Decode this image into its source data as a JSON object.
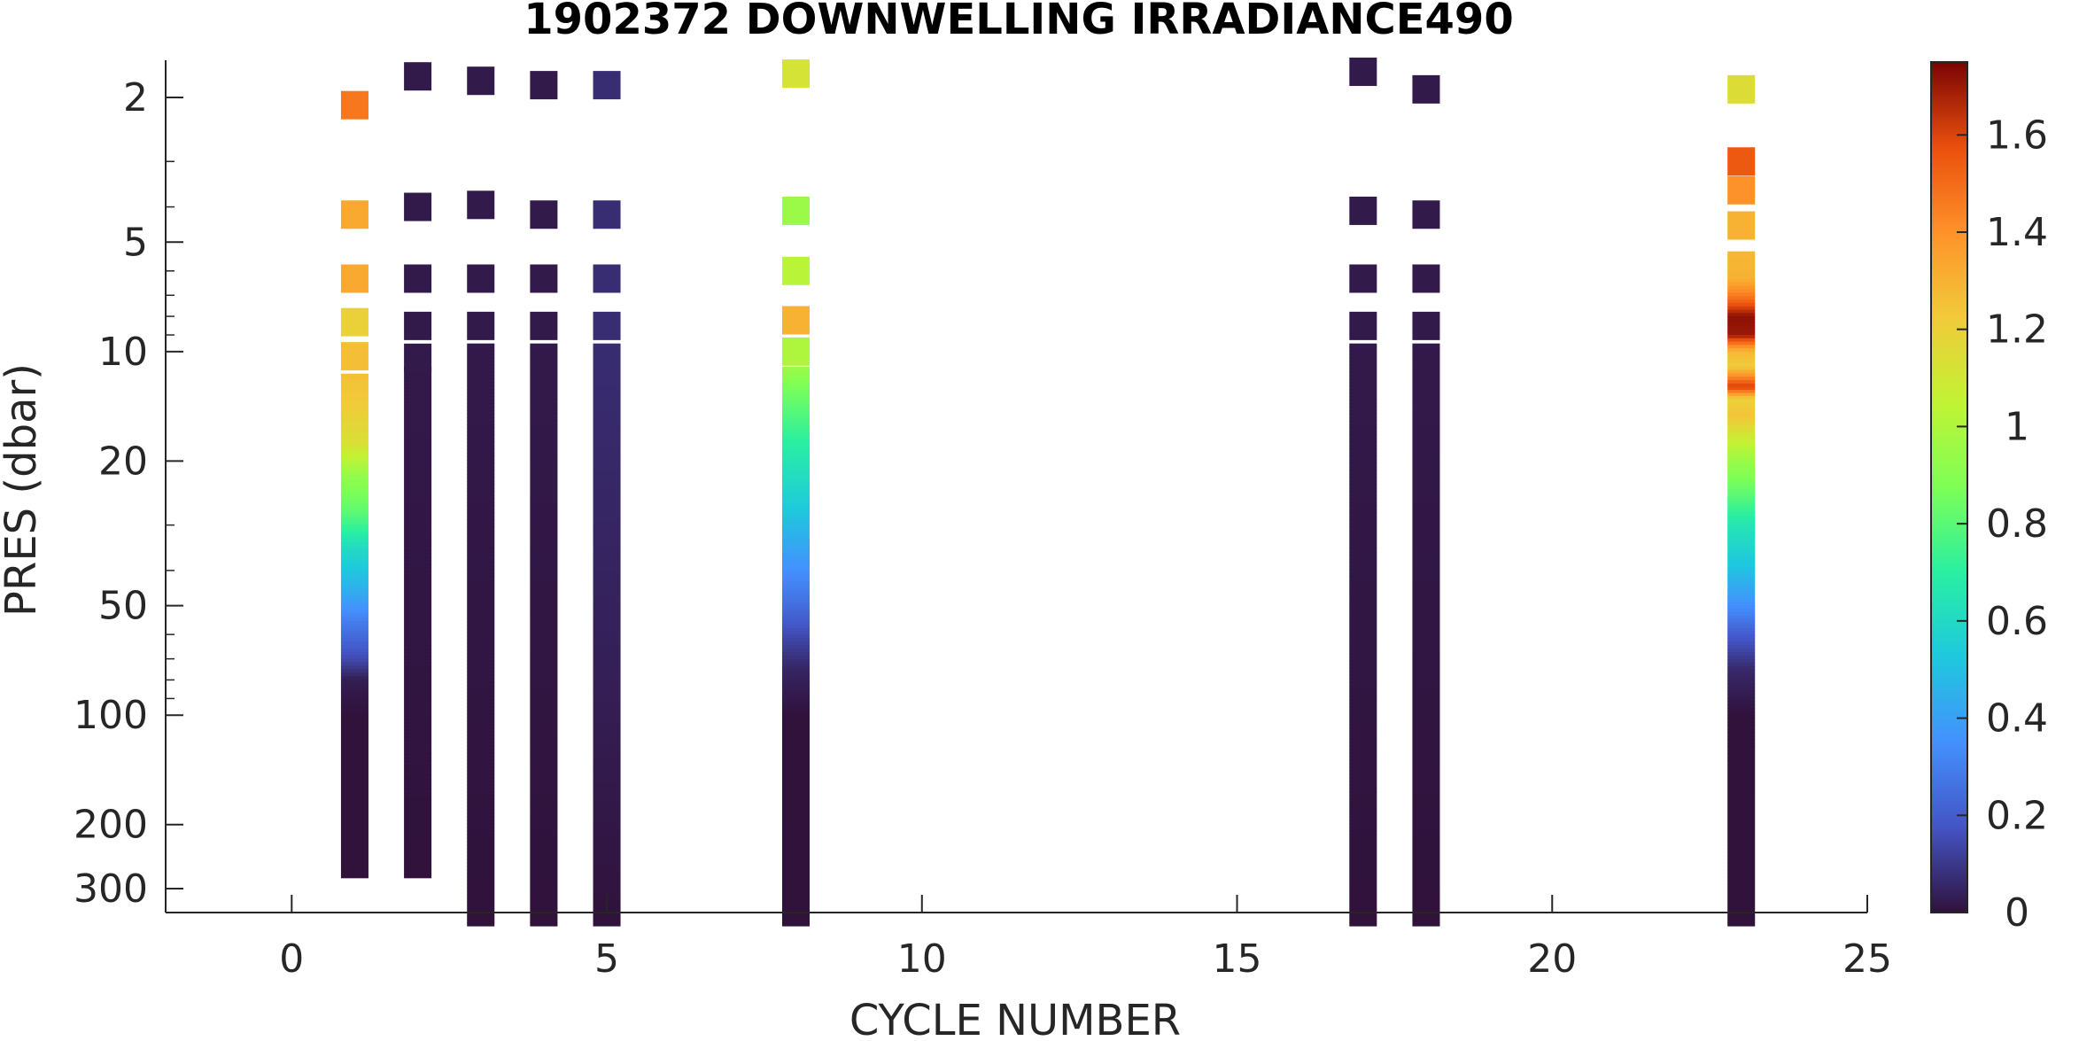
{
  "chart_data": {
    "type": "heatmap",
    "title": "1902372  DOWNWELLING IRRADIANCE490",
    "xlabel": "CYCLE NUMBER",
    "ylabel": "PRES (dbar)",
    "x_ticks": [
      "0",
      "5",
      "10",
      "15",
      "20",
      "25"
    ],
    "x_tick_values": [
      0,
      5,
      10,
      15,
      20,
      25
    ],
    "xlim": [
      -2,
      25
    ],
    "y_scale": "log",
    "y_reversed": true,
    "y_ticks": [
      "2",
      "5",
      "10",
      "20",
      "50",
      "100",
      "200",
      "300"
    ],
    "y_tick_values": [
      2,
      5,
      10,
      20,
      50,
      100,
      200,
      300
    ],
    "ylim": [
      1.5,
      380
    ],
    "colorbar": {
      "colormap": "turbo",
      "range": [
        0,
        1.75
      ],
      "ticks": [
        "0",
        "0.2",
        "0.4",
        "0.6",
        "0.8",
        "1",
        "1.2",
        "1.4",
        "1.6"
      ],
      "tick_values": [
        0,
        0.2,
        0.4,
        0.6,
        0.8,
        1.0,
        1.2,
        1.4,
        1.6
      ]
    },
    "profiles": [
      {
        "cycle": 1,
        "discrete": [
          [
            2.1,
            1.47
          ],
          [
            4.2,
            1.33
          ],
          [
            6.3,
            1.33
          ],
          [
            8.3,
            1.2
          ],
          [
            10.3,
            1.26
          ]
        ],
        "continuous": [
          [
            11.5,
            1.26
          ],
          [
            14,
            1.22
          ],
          [
            18,
            1.13
          ],
          [
            22,
            0.93
          ],
          [
            28,
            0.8
          ],
          [
            35,
            0.6
          ],
          [
            45,
            0.45
          ],
          [
            55,
            0.3
          ],
          [
            70,
            0.15
          ],
          [
            80,
            0.03
          ],
          [
            100,
            0.0
          ],
          [
            280,
            0.0
          ]
        ]
      },
      {
        "cycle": 2,
        "discrete": [
          [
            1.75,
            0.02
          ],
          [
            4.0,
            0.02
          ],
          [
            6.3,
            0.02
          ],
          [
            8.5,
            0.02
          ],
          [
            10.4,
            0.02
          ]
        ],
        "continuous": [
          [
            11,
            0.02
          ],
          [
            280,
            0.0
          ]
        ]
      },
      {
        "cycle": 3,
        "discrete": [
          [
            1.8,
            0.02
          ],
          [
            3.95,
            0.02
          ],
          [
            6.3,
            0.02
          ],
          [
            8.5,
            0.02
          ]
        ],
        "continuous": [
          [
            9.5,
            0.02
          ],
          [
            400,
            0.0
          ]
        ]
      },
      {
        "cycle": 4,
        "discrete": [
          [
            1.85,
            0.02
          ],
          [
            4.2,
            0.02
          ],
          [
            6.3,
            0.02
          ],
          [
            8.5,
            0.02
          ]
        ],
        "continuous": [
          [
            9.5,
            0.02
          ],
          [
            400,
            0.0
          ]
        ]
      },
      {
        "cycle": 5,
        "discrete": [
          [
            1.85,
            0.07
          ],
          [
            4.2,
            0.07
          ],
          [
            6.3,
            0.07
          ],
          [
            8.5,
            0.07
          ]
        ],
        "continuous": [
          [
            9.5,
            0.07
          ],
          [
            60,
            0.04
          ],
          [
            400,
            0.0
          ]
        ]
      },
      {
        "cycle": 8,
        "discrete": [
          [
            1.72,
            1.12
          ],
          [
            4.1,
            0.95
          ],
          [
            6.0,
            1.03
          ],
          [
            8.2,
            1.3
          ],
          [
            10.0,
            1.0
          ]
        ],
        "continuous": [
          [
            11,
            0.95
          ],
          [
            13,
            0.85
          ],
          [
            16,
            0.75
          ],
          [
            20,
            0.65
          ],
          [
            26,
            0.55
          ],
          [
            32,
            0.45
          ],
          [
            40,
            0.35
          ],
          [
            50,
            0.25
          ],
          [
            60,
            0.15
          ],
          [
            75,
            0.05
          ],
          [
            100,
            0.0
          ],
          [
            400,
            0.0
          ]
        ]
      },
      {
        "cycle": 17,
        "discrete": [
          [
            1.7,
            0.02
          ],
          [
            4.1,
            0.02
          ],
          [
            6.3,
            0.02
          ],
          [
            8.5,
            0.02
          ]
        ],
        "continuous": [
          [
            9.5,
            0.02
          ],
          [
            400,
            0.0
          ]
        ]
      },
      {
        "cycle": 18,
        "discrete": [
          [
            1.9,
            0.02
          ],
          [
            4.2,
            0.02
          ],
          [
            6.3,
            0.02
          ],
          [
            8.5,
            0.02
          ]
        ],
        "continuous": [
          [
            9.5,
            0.02
          ],
          [
            400,
            0.0
          ]
        ]
      },
      {
        "cycle": 23,
        "discrete": [
          [
            1.9,
            1.15
          ],
          [
            3.0,
            1.55
          ],
          [
            3.6,
            1.4
          ],
          [
            4.5,
            1.3
          ]
        ],
        "continuous": [
          [
            5.3,
            1.28
          ],
          [
            6.3,
            1.3
          ],
          [
            7.2,
            1.5
          ],
          [
            8.0,
            1.72
          ],
          [
            9.0,
            1.7
          ],
          [
            10.0,
            1.28
          ],
          [
            11.0,
            1.22
          ],
          [
            12.5,
            1.62
          ],
          [
            13.5,
            1.2
          ],
          [
            15,
            1.25
          ],
          [
            17,
            1.1
          ],
          [
            20,
            0.95
          ],
          [
            25,
            0.8
          ],
          [
            30,
            0.65
          ],
          [
            40,
            0.5
          ],
          [
            50,
            0.35
          ],
          [
            60,
            0.2
          ],
          [
            75,
            0.06
          ],
          [
            100,
            0.0
          ],
          [
            400,
            0.0
          ]
        ]
      }
    ]
  }
}
